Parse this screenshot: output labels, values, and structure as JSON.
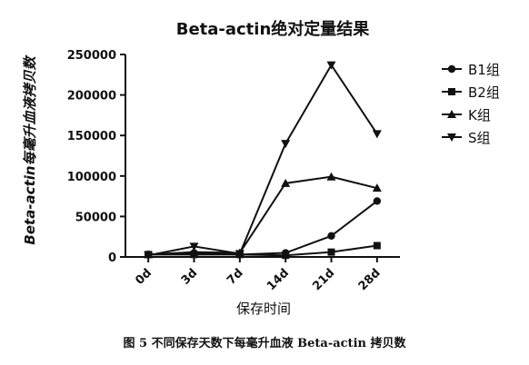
{
  "chart_data": {
    "type": "line",
    "title": "Beta-actin绝对定量结果",
    "xlabel": "保存时间",
    "ylabel": "Beta-actin每毫升血液拷贝数",
    "categories": [
      "0d",
      "3d",
      "7d",
      "14d",
      "21d",
      "28d"
    ],
    "ylim": [
      0,
      250000
    ],
    "yticks": [
      "0",
      "50000",
      "100000",
      "150000",
      "200000",
      "250000"
    ],
    "legend_position": "right",
    "grid": false,
    "series": [
      {
        "name": "B1组",
        "marker": "circle",
        "values": [
          3000,
          5000,
          3000,
          5000,
          26000,
          69000
        ]
      },
      {
        "name": "B2组",
        "marker": "square",
        "values": [
          3000,
          3000,
          3000,
          2000,
          6000,
          14000
        ]
      },
      {
        "name": "K组",
        "marker": "triangle-up",
        "values": [
          3000,
          6000,
          5000,
          91000,
          99000,
          85000
        ]
      },
      {
        "name": "S组",
        "marker": "triangle-down",
        "values": [
          2000,
          13000,
          4000,
          140000,
          237000,
          152000
        ]
      }
    ]
  },
  "caption": "图 5  不同保存天数下每毫升血液 Beta-actin 拷贝数"
}
